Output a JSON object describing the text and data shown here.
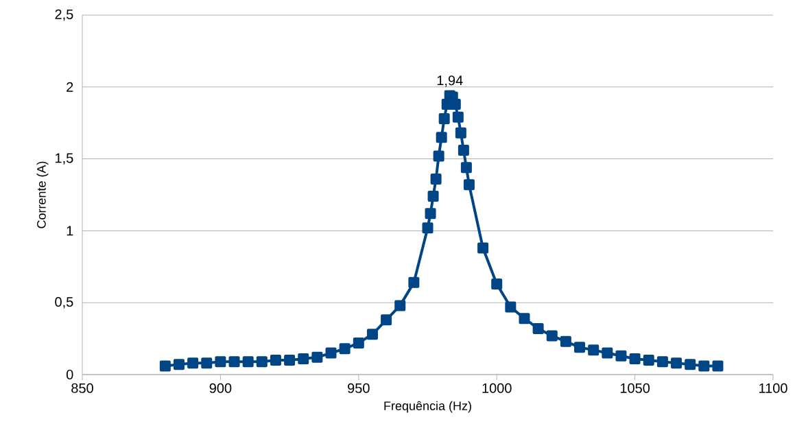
{
  "chart_data": {
    "type": "line",
    "xlabel": "Frequência (Hz)",
    "ylabel": "Corrente (A)",
    "x": [
      880,
      885,
      890,
      895,
      900,
      905,
      910,
      915,
      920,
      925,
      930,
      935,
      940,
      945,
      950,
      955,
      960,
      965,
      970,
      975,
      976,
      977,
      978,
      979,
      980,
      981,
      982,
      983,
      984,
      985,
      986,
      987,
      988,
      989,
      990,
      995,
      1000,
      1005,
      1010,
      1015,
      1020,
      1025,
      1030,
      1035,
      1040,
      1045,
      1050,
      1055,
      1060,
      1065,
      1070,
      1075,
      1080
    ],
    "series": [
      {
        "color": "#004586",
        "values": [
          0.06,
          0.07,
          0.08,
          0.08,
          0.09,
          0.09,
          0.09,
          0.09,
          0.1,
          0.1,
          0.11,
          0.12,
          0.15,
          0.18,
          0.22,
          0.28,
          0.38,
          0.48,
          0.64,
          1.02,
          1.12,
          1.24,
          1.36,
          1.52,
          1.65,
          1.78,
          1.88,
          1.94,
          1.93,
          1.88,
          1.79,
          1.68,
          1.56,
          1.44,
          1.32,
          0.88,
          0.63,
          0.47,
          0.39,
          0.32,
          0.27,
          0.23,
          0.19,
          0.17,
          0.15,
          0.13,
          0.11,
          0.1,
          0.09,
          0.08,
          0.07,
          0.06,
          0.06
        ],
        "value_labels": [
          null,
          null,
          null,
          null,
          null,
          null,
          null,
          null,
          null,
          null,
          null,
          null,
          null,
          null,
          null,
          null,
          null,
          null,
          null,
          null,
          null,
          null,
          null,
          null,
          null,
          null,
          null,
          "1,94",
          null,
          null,
          null,
          null,
          null,
          null,
          null,
          null,
          null,
          null,
          null,
          null,
          null,
          null,
          null,
          null,
          null,
          null,
          null,
          null,
          null,
          null,
          null,
          null,
          null
        ]
      }
    ],
    "xlim": [
      850,
      1100
    ],
    "xticks": [
      850,
      900,
      950,
      1000,
      1050,
      1100
    ],
    "ylim": [
      0,
      2.5
    ],
    "yticks": [
      0,
      {
        "value": 0.5,
        "label": "0,5"
      },
      1,
      {
        "value": 1.5,
        "label": "1,5"
      },
      2,
      {
        "value": 2.5,
        "label": "2,5"
      }
    ],
    "grid": "y",
    "marker": "square",
    "line_style": "solid",
    "legend": false
  }
}
